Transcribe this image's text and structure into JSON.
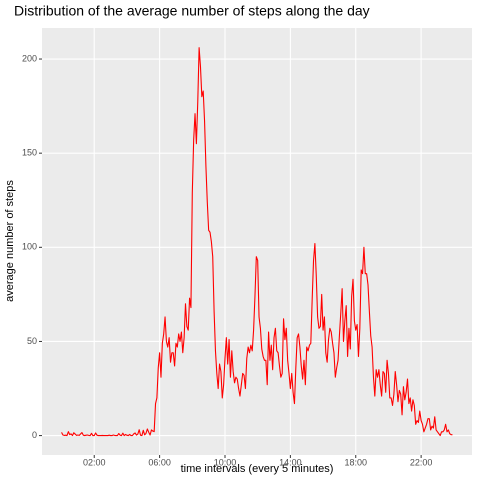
{
  "chart_data": {
    "type": "line",
    "title": "Distribution of the average number of steps along the day",
    "x_label": "time intervals (every 5 minutes)",
    "y_label": "average number of steps",
    "x": [
      0,
      5,
      10,
      15,
      20,
      25,
      30,
      35,
      40,
      45,
      50,
      55,
      60,
      65,
      70,
      75,
      80,
      85,
      90,
      95,
      100,
      105,
      110,
      115,
      120,
      125,
      130,
      135,
      140,
      145,
      150,
      155,
      160,
      165,
      170,
      175,
      180,
      185,
      190,
      195,
      200,
      205,
      210,
      215,
      220,
      225,
      230,
      235,
      240,
      245,
      250,
      255,
      260,
      265,
      270,
      275,
      280,
      285,
      290,
      295,
      300,
      305,
      310,
      315,
      320,
      325,
      330,
      335,
      340,
      345,
      350,
      355,
      360,
      365,
      370,
      375,
      380,
      385,
      390,
      395,
      400,
      405,
      410,
      415,
      420,
      425,
      430,
      435,
      440,
      445,
      450,
      455,
      460,
      465,
      470,
      475,
      480,
      485,
      490,
      495,
      500,
      505,
      510,
      515,
      520,
      525,
      530,
      535,
      540,
      545,
      550,
      555,
      560,
      565,
      570,
      575,
      580,
      585,
      590,
      595,
      600,
      605,
      610,
      615,
      620,
      625,
      630,
      635,
      640,
      645,
      650,
      655,
      660,
      665,
      670,
      675,
      680,
      685,
      690,
      695,
      700,
      705,
      710,
      715,
      720,
      725,
      730,
      735,
      740,
      745,
      750,
      755,
      760,
      765,
      770,
      775,
      780,
      785,
      790,
      795,
      800,
      805,
      810,
      815,
      820,
      825,
      830,
      835,
      840,
      845,
      850,
      855,
      860,
      865,
      870,
      875,
      880,
      885,
      890,
      895,
      900,
      905,
      910,
      915,
      920,
      925,
      930,
      935,
      940,
      945,
      950,
      955,
      960,
      965,
      970,
      975,
      980,
      985,
      990,
      995,
      1000,
      1005,
      1010,
      1015,
      1020,
      1025,
      1030,
      1035,
      1040,
      1045,
      1050,
      1055,
      1060,
      1065,
      1070,
      1075,
      1080,
      1085,
      1090,
      1095,
      1100,
      1105,
      1110,
      1115,
      1120,
      1125,
      1130,
      1135,
      1140,
      1145,
      1150,
      1155,
      1160,
      1165,
      1170,
      1175,
      1180,
      1185,
      1190,
      1195,
      1200,
      1205,
      1210,
      1215,
      1220,
      1225,
      1230,
      1235,
      1240,
      1245,
      1250,
      1255,
      1260,
      1265,
      1270,
      1275,
      1280,
      1285,
      1290,
      1295,
      1300,
      1305,
      1310,
      1315,
      1320,
      1325,
      1330,
      1335,
      1340,
      1345,
      1350,
      1355,
      1360,
      1365,
      1370,
      1375,
      1380,
      1385,
      1390,
      1395,
      1400,
      1405,
      1410,
      1415,
      1420,
      1425,
      1430,
      1435
    ],
    "series": [
      {
        "color": "#ff0000",
        "values": [
          1.7,
          0.3,
          0.1,
          0.2,
          0,
          2.1,
          0.5,
          0.9,
          0,
          1.5,
          0.8,
          0.1,
          0.3,
          0.1,
          0.9,
          1.6,
          0.2,
          0,
          0.2,
          0.3,
          0.1,
          0,
          1.2,
          0,
          0,
          1.4,
          0.2,
          0,
          0,
          0,
          0.1,
          0,
          0,
          0,
          0,
          0.2,
          0,
          0,
          0.3,
          0.1,
          0,
          0,
          1.1,
          0.2,
          0,
          1.3,
          0,
          0.6,
          0.2,
          0,
          0.6,
          0,
          0,
          0.9,
          1.4,
          0.3,
          0.8,
          3.1,
          0.2,
          0,
          2.8,
          0.4,
          1.2,
          3.5,
          1.8,
          0.3,
          3,
          2.4,
          2.1,
          17,
          20,
          36,
          44,
          31,
          49,
          54,
          63,
          50,
          47,
          52,
          39,
          44,
          44,
          37,
          49,
          47,
          54,
          50,
          55,
          44,
          52,
          70,
          58,
          56,
          73,
          68,
          129,
          157,
          171,
          155,
          177,
          206,
          196,
          180,
          183,
          167,
          143,
          124,
          109,
          108,
          103,
          95,
          66,
          45,
          33,
          25,
          38,
          34,
          20,
          27,
          41,
          52,
          38,
          51,
          31,
          45,
          34,
          28,
          31,
          30,
          25,
          21,
          27,
          33,
          32,
          25,
          41,
          47,
          44,
          48,
          45,
          56,
          74,
          95,
          93,
          63,
          57,
          46,
          42,
          40,
          40,
          27,
          55,
          40,
          48,
          35,
          52,
          57,
          45,
          44,
          37,
          31,
          33,
          62,
          51,
          57,
          40,
          33,
          25,
          33,
          23,
          17,
          36,
          52,
          54,
          47,
          37,
          30,
          40,
          27,
          47,
          45,
          48,
          49,
          72,
          93,
          102,
          85,
          63,
          57,
          58,
          75,
          56,
          63,
          44,
          39,
          51,
          57,
          55,
          49,
          44,
          31,
          36,
          40,
          53,
          65,
          78,
          50,
          61,
          69,
          42,
          57,
          46,
          74,
          83,
          61,
          56,
          59,
          42,
          57,
          88,
          86,
          100,
          86,
          86,
          80,
          66,
          53,
          47,
          31,
          21,
          35,
          31,
          35,
          27,
          21,
          34,
          33,
          23,
          40,
          33,
          20,
          20,
          16,
          22,
          34,
          27,
          18,
          24,
          22,
          11,
          26,
          19,
          23,
          30,
          17,
          20,
          13,
          19,
          16,
          6,
          8,
          7,
          13,
          8,
          6,
          2,
          4,
          6,
          9,
          9,
          3,
          5,
          4,
          10,
          3,
          2,
          1,
          0,
          2,
          2,
          3,
          6,
          2,
          3,
          1,
          0.5,
          0.5
        ]
      }
    ],
    "xlim": [
      -71.75,
      1506.75
    ],
    "xticks": [
      {
        "value": 120,
        "label": "02:00"
      },
      {
        "value": 360,
        "label": "06:00"
      },
      {
        "value": 600,
        "label": "10:00"
      },
      {
        "value": 840,
        "label": "14:00"
      },
      {
        "value": 1080,
        "label": "18:00"
      },
      {
        "value": 1320,
        "label": "22:00"
      }
    ],
    "ylim": [
      -10.31,
      216.48
    ],
    "yticks": [
      0,
      50,
      100,
      150,
      200
    ],
    "grid": true
  }
}
